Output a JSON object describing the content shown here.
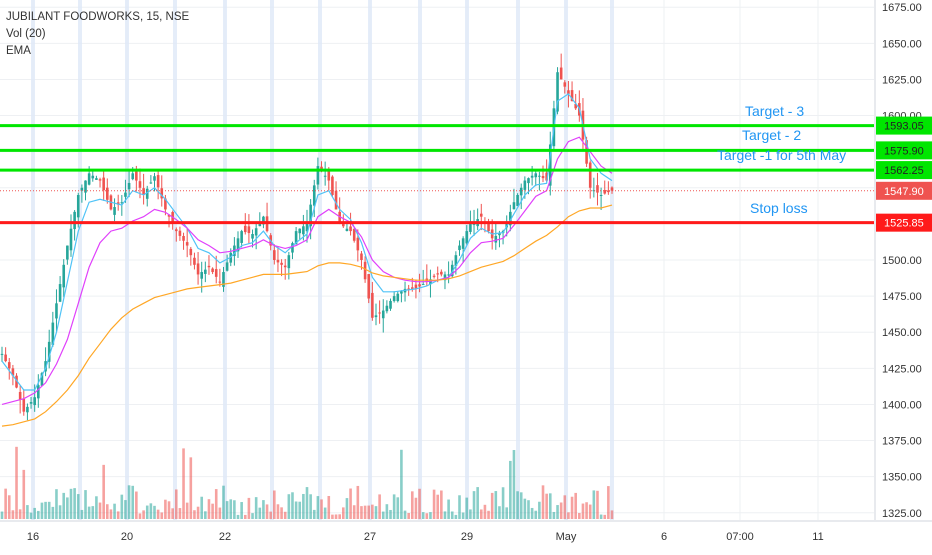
{
  "legend": {
    "title": "JUBILANT FOODWORKS, 15, NSE",
    "vol": "Vol (20)",
    "ema": "EMA"
  },
  "chart_data": {
    "type": "candlestick",
    "ylim": [
      1320,
      1680
    ],
    "y_ticks": [
      1325,
      1350,
      1375,
      1400,
      1425,
      1450,
      1475,
      1500,
      1525,
      1550,
      1575,
      1600,
      1625,
      1650,
      1675
    ],
    "y_tick_labels": [
      "1325.00",
      "1350.00",
      "1375.00",
      "1400.00",
      "1425.00",
      "1450.00",
      "1475.00",
      "1500.00",
      "1525.00",
      "1550.00",
      "1575.00",
      "1600.00",
      "1625.00",
      "1650.00",
      "1675.00"
    ],
    "x_tick_labels": [
      "16",
      "20",
      "22",
      "27",
      "29",
      "May",
      "6",
      "07:00",
      "11"
    ],
    "horizontal_levels": [
      {
        "label": "Target - 3",
        "value": 1593.05,
        "price_label": "1593.05",
        "color": "#00e600"
      },
      {
        "label": "Target - 2",
        "value": 1575.9,
        "price_label": "1575.90",
        "color": "#00e600"
      },
      {
        "label": "Target -1 for 5th May",
        "value": 1562.25,
        "price_label": "1562.25",
        "color": "#00e600"
      },
      {
        "label": "Stop loss",
        "value": 1525.85,
        "price_label": "1525.85",
        "color": "#ff1a1a"
      }
    ],
    "last_price": {
      "value": 1547.9,
      "label": "1547.90",
      "color": "#ef5350"
    },
    "close_path": [
      1435,
      1420,
      1395,
      1405,
      1430,
      1470,
      1510,
      1545,
      1560,
      1555,
      1535,
      1540,
      1560,
      1545,
      1558,
      1535,
      1520,
      1510,
      1490,
      1495,
      1485,
      1505,
      1520,
      1518,
      1530,
      1500,
      1495,
      1520,
      1525,
      1565,
      1555,
      1525,
      1520,
      1500,
      1460,
      1465,
      1475,
      1480,
      1480,
      1485,
      1490,
      1490,
      1510,
      1525,
      1530,
      1515,
      1520,
      1540,
      1555,
      1560,
      1555,
      1630,
      1615,
      1600,
      1550,
      1545,
      1548
    ],
    "emas": [
      {
        "color": "#4fc3f7",
        "values": [
          1430,
          1420,
          1410,
          1410,
          1425,
          1450,
          1485,
          1520,
          1540,
          1542,
          1540,
          1538,
          1548,
          1545,
          1550,
          1542,
          1532,
          1522,
          1508,
          1505,
          1498,
          1502,
          1510,
          1512,
          1520,
          1510,
          1505,
          1512,
          1518,
          1545,
          1548,
          1535,
          1528,
          1512,
          1488,
          1478,
          1478,
          1479,
          1480,
          1482,
          1486,
          1488,
          1500,
          1515,
          1522,
          1518,
          1519,
          1532,
          1545,
          1552,
          1553,
          1610,
          1615,
          1605,
          1570,
          1560,
          1555
        ]
      },
      {
        "color": "#e040fb",
        "values": [
          1400,
          1402,
          1404,
          1408,
          1415,
          1428,
          1445,
          1470,
          1495,
          1512,
          1520,
          1522,
          1527,
          1530,
          1535,
          1533,
          1528,
          1522,
          1514,
          1510,
          1505,
          1506,
          1508,
          1510,
          1514,
          1510,
          1508,
          1510,
          1514,
          1530,
          1535,
          1530,
          1526,
          1516,
          1500,
          1492,
          1488,
          1486,
          1485,
          1485,
          1486,
          1488,
          1495,
          1505,
          1512,
          1513,
          1515,
          1524,
          1534,
          1544,
          1548,
          1570,
          1582,
          1585,
          1575,
          1565,
          1560
        ]
      },
      {
        "color": "#ffa726",
        "values": [
          1385,
          1386,
          1388,
          1390,
          1395,
          1402,
          1410,
          1420,
          1432,
          1442,
          1452,
          1460,
          1466,
          1470,
          1474,
          1476,
          1478,
          1480,
          1481,
          1482,
          1483,
          1484,
          1486,
          1488,
          1490,
          1490,
          1490,
          1491,
          1492,
          1496,
          1498,
          1498,
          1497,
          1495,
          1491,
          1489,
          1488,
          1487,
          1486,
          1486,
          1486,
          1487,
          1489,
          1492,
          1495,
          1497,
          1499,
          1503,
          1508,
          1513,
          1517,
          1523,
          1530,
          1534,
          1536,
          1536,
          1538
        ]
      }
    ],
    "volume_note": "volume bars at bottom, teal/red"
  }
}
